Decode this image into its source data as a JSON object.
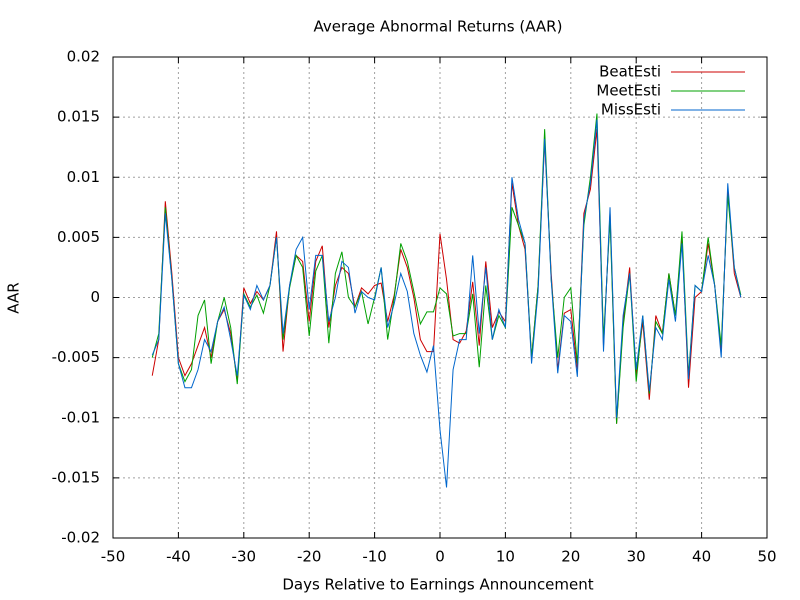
{
  "chart_data": {
    "type": "line",
    "title": "Average Abnormal Returns (AAR)",
    "xlabel": "Days Relative to Earnings Announcement",
    "ylabel": "AAR",
    "xlim": [
      -50,
      50
    ],
    "xticks": [
      -50,
      -40,
      -30,
      -20,
      -10,
      0,
      10,
      20,
      30,
      40,
      50
    ],
    "ylim": [
      -0.02,
      0.02
    ],
    "yticks": [
      -0.02,
      -0.015,
      -0.01,
      -0.005,
      0,
      0.005,
      0.01,
      0.015,
      0.02
    ],
    "grid": true,
    "legend": "top-right",
    "x": [
      -44,
      -43,
      -42,
      -41,
      -40,
      -39,
      -38,
      -37,
      -36,
      -35,
      -34,
      -33,
      -32,
      -31,
      -30,
      -29,
      -28,
      -27,
      -26,
      -25,
      -24,
      -23,
      -22,
      -21,
      -20,
      -19,
      -18,
      -17,
      -16,
      -15,
      -14,
      -13,
      -12,
      -11,
      -10,
      -9,
      -8,
      -7,
      -6,
      -5,
      -4,
      -3,
      -2,
      -1,
      0,
      1,
      2,
      3,
      4,
      5,
      6,
      7,
      8,
      9,
      10,
      11,
      12,
      13,
      14,
      15,
      16,
      17,
      18,
      19,
      20,
      21,
      22,
      23,
      24,
      25,
      26,
      27,
      28,
      29,
      30,
      31,
      32,
      33,
      34,
      35,
      36,
      37,
      38,
      39,
      40,
      41,
      42,
      43,
      44,
      45,
      46
    ],
    "series": [
      {
        "name": "BeatEsti",
        "color": "#cc0000",
        "values": [
          -0.0065,
          -0.0035,
          0.008,
          0.002,
          -0.005,
          -0.0065,
          -0.0055,
          -0.004,
          -0.0025,
          -0.005,
          -0.002,
          -0.001,
          -0.003,
          -0.007,
          0.0008,
          -0.0005,
          0.0005,
          -0.0002,
          0.001,
          0.0055,
          -0.0045,
          0.001,
          0.0035,
          0.003,
          -0.002,
          0.003,
          0.0043,
          -0.0025,
          0.001,
          0.0025,
          0.002,
          -0.0008,
          0.0008,
          0.0003,
          0.001,
          0.0012,
          -0.002,
          0.0002,
          0.004,
          0.0025,
          0.0,
          -0.0035,
          -0.0045,
          -0.0045,
          0.0053,
          0.0015,
          -0.0035,
          -0.0038,
          -0.0028,
          0.0013,
          -0.004,
          0.003,
          -0.0025,
          -0.0012,
          -0.002,
          0.0095,
          0.006,
          0.004,
          -0.005,
          0.001,
          0.013,
          0.002,
          -0.006,
          -0.0013,
          -0.001,
          -0.006,
          0.007,
          0.009,
          0.014,
          -0.004,
          0.007,
          -0.0105,
          -0.002,
          0.0025,
          -0.0065,
          -0.002,
          -0.0085,
          -0.0015,
          -0.003,
          0.002,
          -0.0015,
          0.005,
          -0.0075,
          0.0,
          0.0005,
          0.0045,
          0.001,
          -0.0045,
          0.009,
          0.002,
          0.0
        ]
      },
      {
        "name": "MeetEsti",
        "color": "#00a000",
        "values": [
          -0.005,
          -0.003,
          0.0075,
          0.0015,
          -0.0055,
          -0.007,
          -0.006,
          -0.0015,
          -0.0002,
          -0.0055,
          -0.002,
          0.0,
          -0.0025,
          -0.0072,
          0.0003,
          -0.0008,
          0.0002,
          -0.0013,
          0.001,
          0.005,
          -0.0035,
          0.0008,
          0.0035,
          0.0025,
          -0.0032,
          0.0022,
          0.0035,
          -0.0038,
          0.002,
          0.0038,
          0.0,
          -0.0008,
          0.0005,
          -0.0022,
          0.0,
          0.0025,
          -0.0035,
          0.0,
          0.0045,
          0.003,
          0.0005,
          -0.0022,
          -0.0012,
          -0.0012,
          0.0008,
          0.0003,
          -0.0032,
          -0.003,
          -0.003,
          0.0003,
          -0.0058,
          0.001,
          -0.0035,
          -0.0015,
          -0.0025,
          0.0075,
          0.006,
          0.0045,
          -0.005,
          0.001,
          0.014,
          0.0015,
          -0.005,
          0.0,
          0.0008,
          -0.0055,
          0.006,
          0.01,
          0.0153,
          -0.0035,
          0.0065,
          -0.0105,
          -0.0025,
          0.002,
          -0.007,
          -0.0015,
          -0.008,
          -0.002,
          -0.003,
          0.002,
          -0.0015,
          0.0055,
          -0.0065,
          0.001,
          0.0005,
          0.005,
          0.001,
          -0.004,
          0.0085,
          0.0025,
          0.0002
        ]
      },
      {
        "name": "MissEsti",
        "color": "#0066cc",
        "values": [
          -0.0048,
          -0.0035,
          0.007,
          0.0015,
          -0.0055,
          -0.0075,
          -0.0075,
          -0.006,
          -0.0035,
          -0.0045,
          -0.002,
          -0.0008,
          -0.0035,
          -0.0065,
          0.0002,
          -0.001,
          0.001,
          -0.0002,
          0.001,
          0.005,
          -0.003,
          0.001,
          0.004,
          0.005,
          -0.001,
          0.0035,
          0.0035,
          -0.002,
          0.0,
          0.003,
          0.0025,
          -0.0013,
          0.0005,
          0.0,
          -0.0002,
          0.0025,
          -0.0025,
          -0.0005,
          0.002,
          0.0005,
          -0.003,
          -0.0048,
          -0.0062,
          -0.004,
          -0.011,
          -0.0158,
          -0.006,
          -0.0035,
          -0.0035,
          0.0035,
          -0.003,
          0.0025,
          -0.0035,
          -0.001,
          -0.0025,
          0.01,
          0.0065,
          0.0045,
          -0.0055,
          0.0005,
          0.0132,
          0.0015,
          -0.0063,
          -0.0015,
          -0.002,
          -0.0066,
          0.0065,
          0.0095,
          0.0148,
          -0.0045,
          0.0075,
          -0.01,
          -0.0015,
          0.002,
          -0.006,
          -0.0015,
          -0.0078,
          -0.0025,
          -0.0035,
          0.0015,
          -0.002,
          0.0045,
          -0.0068,
          0.001,
          0.0005,
          0.0035,
          0.001,
          -0.005,
          0.0095,
          0.0025,
          0.0
        ]
      }
    ]
  }
}
